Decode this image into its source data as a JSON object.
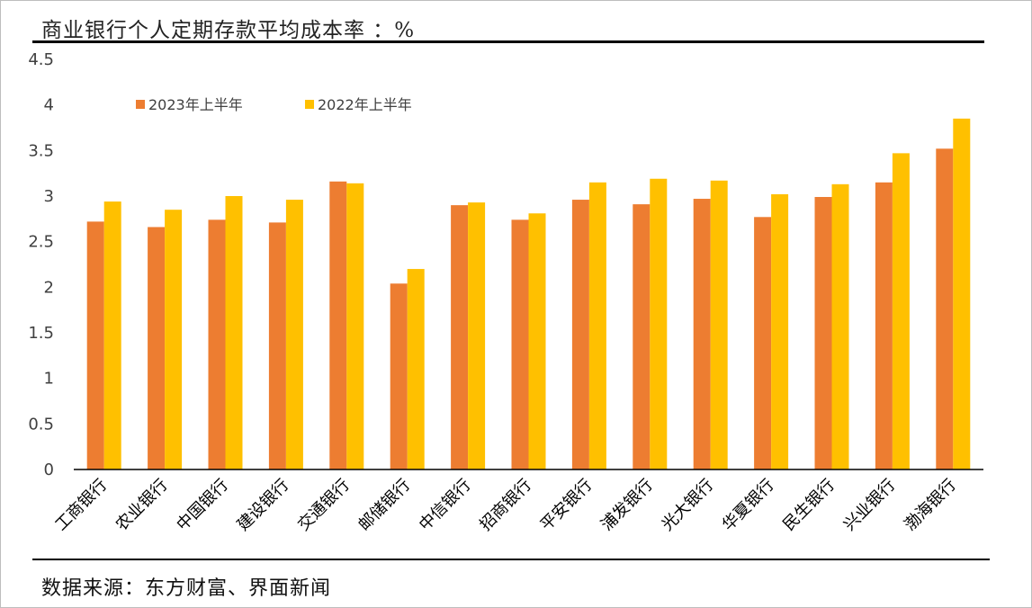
{
  "title": "商业银行个人定期存款平均成本率 ：%",
  "source": "数据来源：东方财富、界面新闻",
  "chart_data": {
    "type": "bar",
    "title": "商业银行个人定期存款平均成本率 ：%",
    "xlabel": "",
    "ylabel": "",
    "ylim": [
      0,
      4.5
    ],
    "yticks": [
      0,
      0.5,
      1,
      1.5,
      2,
      2.5,
      3,
      3.5,
      4,
      4.5
    ],
    "ytick_labels": [
      "0",
      "0.5",
      "1",
      "1.5",
      "2",
      "2.5",
      "3",
      "3.5",
      "4",
      "4.5"
    ],
    "grid": false,
    "legend_position": "top-left",
    "categories": [
      "工商银行",
      "农业银行",
      "中国银行",
      "建设银行",
      "交通银行",
      "邮储银行",
      "中信银行",
      "招商银行",
      "平安银行",
      "浦发银行",
      "光大银行",
      "华夏银行",
      "民生银行",
      "兴业银行",
      "渤海银行"
    ],
    "series": [
      {
        "name": "2023年上半年",
        "color": "#ED7D31",
        "values": [
          2.72,
          2.66,
          2.74,
          2.71,
          3.16,
          2.04,
          2.9,
          2.74,
          2.96,
          2.91,
          2.97,
          2.77,
          2.99,
          3.15,
          3.52
        ]
      },
      {
        "name": "2022年上半年",
        "color": "#FFC000",
        "values": [
          2.94,
          2.85,
          3.0,
          2.96,
          3.14,
          2.2,
          2.93,
          2.81,
          3.15,
          3.19,
          3.17,
          3.02,
          3.13,
          3.47,
          3.85
        ]
      }
    ]
  }
}
